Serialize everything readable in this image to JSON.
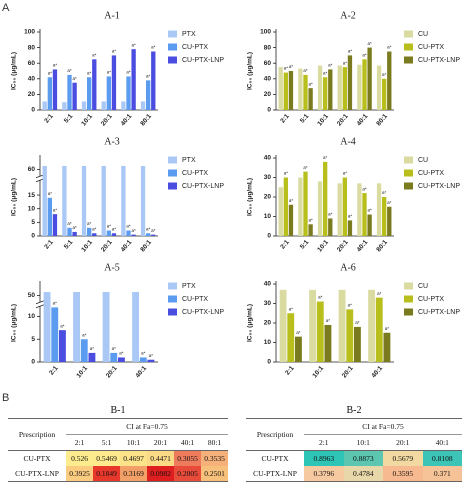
{
  "sections": [
    "A",
    "B"
  ],
  "chart_data": [
    {
      "type": "bar",
      "title": "A-1",
      "y_label": "IC₅₀ (μg/mL)",
      "categories": [
        "2:1",
        "5:1",
        "10:1",
        "20:1",
        "40:1",
        "80:1"
      ],
      "ylim": [
        0,
        100
      ],
      "yticks": [
        0,
        20,
        40,
        60,
        80,
        100
      ],
      "series": [
        {
          "name": "PTX",
          "color": "#a9c8f5",
          "values": [
            11,
            10,
            11,
            11,
            11,
            11
          ]
        },
        {
          "name": "CU-PTX",
          "color": "#5b9bf0",
          "annotation": "a*",
          "values": [
            42,
            45,
            42,
            43,
            43,
            38
          ]
        },
        {
          "name": "CU-PTX-LNP",
          "color": "#4a4de0",
          "annotation": "a*",
          "values": [
            52,
            35,
            65,
            70,
            78,
            75
          ]
        }
      ]
    },
    {
      "type": "bar",
      "title": "A-2",
      "y_label": "IC₅₀ (μg/mL)",
      "categories": [
        "2:1",
        "5:1",
        "10:1",
        "20:1",
        "40:1",
        "80:1"
      ],
      "ylim": [
        0,
        100
      ],
      "yticks": [
        0,
        20,
        40,
        60,
        80,
        100
      ],
      "series": [
        {
          "name": "CU",
          "color": "#d9dba0",
          "values": [
            55,
            53,
            57,
            57,
            58,
            57
          ]
        },
        {
          "name": "CU-PTX",
          "color": "#b8bf1c",
          "annotation": "a*",
          "values": [
            48,
            45,
            42,
            55,
            65,
            40
          ]
        },
        {
          "name": "CU-PTX-LNP",
          "color": "#7a7a1e",
          "annotation": "a*",
          "values": [
            50,
            28,
            52,
            70,
            80,
            75
          ]
        }
      ]
    },
    {
      "type": "bar",
      "title": "A-3",
      "y_label": "IC₅₀ (μg/mL)",
      "categories": [
        "2:1",
        "5:1",
        "10:1",
        "20:1",
        "40:1",
        "80:1"
      ],
      "ylim": [
        0,
        70
      ],
      "ybreak": [
        20,
        55
      ],
      "yticks": [
        0,
        5,
        10,
        15,
        60
      ],
      "series": [
        {
          "name": "PTX",
          "color": "#a9c8f5",
          "values": [
            63,
            63,
            63,
            63,
            63,
            63
          ]
        },
        {
          "name": "CU-PTX",
          "color": "#5b9bf0",
          "annotation": "a*",
          "values": [
            14,
            3,
            3,
            2,
            2,
            1
          ]
        },
        {
          "name": "CU-PTX-LNP",
          "color": "#4a4de0",
          "annotation": "a*",
          "values": [
            8,
            1.5,
            1,
            1,
            0.5,
            0.5
          ]
        }
      ]
    },
    {
      "type": "bar",
      "title": "A-4",
      "y_label": "IC₅₀ (μg/mL)",
      "categories": [
        "2:1",
        "5:1",
        "10:1",
        "20:1",
        "40:1",
        "80:1"
      ],
      "ylim": [
        0,
        40
      ],
      "yticks": [
        0,
        10,
        20,
        30,
        40
      ],
      "series": [
        {
          "name": "CU",
          "color": "#d9dba0",
          "values": [
            25,
            30,
            28,
            27,
            27,
            27
          ]
        },
        {
          "name": "CU-PTX",
          "color": "#b8bf1c",
          "annotation": "a*",
          "values": [
            30,
            33,
            38,
            30,
            22,
            20
          ]
        },
        {
          "name": "CU-PTX-LNP",
          "color": "#7a7a1e",
          "annotation": "a*",
          "values": [
            16,
            6,
            9,
            8,
            11,
            15
          ]
        }
      ]
    },
    {
      "type": "bar",
      "title": "A-5",
      "y_label": "IC₅₀ (μg/mL)",
      "categories": [
        "2:1",
        "10:1",
        "20:1",
        "40:1"
      ],
      "ylim": [
        0,
        60
      ],
      "ybreak": [
        12,
        45
      ],
      "yticks": [
        0,
        5,
        10,
        50
      ],
      "series": [
        {
          "name": "PTX",
          "color": "#a9c8f5",
          "values": [
            53,
            53,
            53,
            53
          ]
        },
        {
          "name": "CU-PTX",
          "color": "#5b9bf0",
          "annotation": "a*",
          "values": [
            12,
            5,
            2,
            1
          ]
        },
        {
          "name": "CU-PTX-LNP",
          "color": "#4a4de0",
          "annotation": "a*",
          "values": [
            7,
            2,
            1,
            0.5
          ]
        }
      ]
    },
    {
      "type": "bar",
      "title": "A-6",
      "y_label": "IC₅₀ (μg/mL)",
      "categories": [
        "2:1",
        "10:1",
        "20:1",
        "40:1"
      ],
      "ylim": [
        0,
        40
      ],
      "yticks": [
        0,
        10,
        20,
        30,
        40
      ],
      "series": [
        {
          "name": "CU",
          "color": "#d9dba0",
          "values": [
            37,
            37,
            37,
            37
          ]
        },
        {
          "name": "CU-PTX",
          "color": "#b8bf1c",
          "annotation": "a*",
          "values": [
            25,
            31,
            27,
            33
          ]
        },
        {
          "name": "CU-PTX-LNP",
          "color": "#7a7a1e",
          "annotation": "a*",
          "values": [
            13,
            19,
            18,
            15
          ]
        }
      ]
    }
  ],
  "tables": [
    {
      "title": "B-1",
      "row_header": "Prescription",
      "group_header": "CI at Fa=0.75",
      "columns": [
        "2:1",
        "5:1",
        "10:1",
        "20:1",
        "40:1",
        "80:1"
      ],
      "rows": [
        {
          "name": "CU-PTX",
          "values": [
            0.526,
            0.5469,
            0.4697,
            0.4471,
            0.3055,
            0.3535
          ],
          "colors": [
            "#fdec8e",
            "#fdea8c",
            "#fce38a",
            "#fbda86",
            "#ef7b5d",
            "#f6b079"
          ]
        },
        {
          "name": "CU-PTX-LNP",
          "values": [
            0.3925,
            0.1849,
            0.3169,
            0.0982,
            0.2005,
            0.2501
          ],
          "colors": [
            "#fbcb80",
            "#e8372b",
            "#f39f68",
            "#df1f1f",
            "#e94b3b",
            "#f7c17b"
          ]
        }
      ]
    },
    {
      "title": "B-2",
      "row_header": "Prescription",
      "group_header": "CI at Fa=0.75",
      "columns": [
        "2:1",
        "10:1",
        "20:1",
        "40:1"
      ],
      "rows": [
        {
          "name": "CU-PTX",
          "values": [
            0.8963,
            0.8873,
            0.5679,
            0.8108
          ],
          "colors": [
            "#2ec4b6",
            "#5cc6b0",
            "#f2d9a2",
            "#3cc4b7"
          ]
        },
        {
          "name": "CU-PTX-LNP",
          "values": [
            0.3796,
            0.4784,
            0.3595,
            0.371
          ],
          "colors": [
            "#f6c9a0",
            "#e7d7a9",
            "#f7b98f",
            "#f5c397"
          ]
        }
      ]
    }
  ]
}
